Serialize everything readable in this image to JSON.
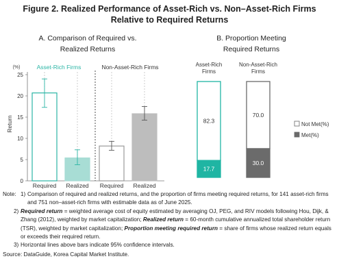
{
  "figure": {
    "title_line1": "Figure 2. Realized Performance of Asset-Rich vs. Non–Asset-Rich Firms",
    "title_line2": "Relative to Required Returns"
  },
  "chart_data": [
    {
      "type": "bar",
      "title_line1": "A. Comparison of Required vs.",
      "title_line2": "Realized Returns",
      "groups": [
        "Asset-Rich Firms",
        "Non-Asset-Rich Firms"
      ],
      "categories": [
        "Required",
        "Realized",
        "Required",
        "Realized"
      ],
      "values": [
        20.7,
        5.4,
        8.2,
        15.8
      ],
      "error_low": [
        17.3,
        3.8,
        7.2,
        14.3
      ],
      "error_high": [
        24.0,
        7.3,
        9.3,
        17.5
      ],
      "ylabel": "Return",
      "unit_label": "(%)",
      "ylim": [
        0,
        25
      ],
      "yticks": [
        "0",
        "5",
        "10",
        "15",
        "20",
        "25"
      ],
      "colors": {
        "required": "#ffffff",
        "asset_rich_outline": "#2bb5a5",
        "asset_rich_realized": "#a8ddd5",
        "non_asset_outline": "#9a9a9a",
        "non_asset_realized": "#bdbdbd",
        "group_label_asset_rich": "#2bb5a5"
      }
    },
    {
      "type": "bar",
      "stacked": true,
      "title_line1": "B. Proportion Meeting",
      "title_line2": "Required Returns",
      "categories": [
        [
          "Asset-Rich",
          "Firms"
        ],
        [
          "Non-Asset-Rich",
          "Firms"
        ]
      ],
      "series": [
        {
          "name": "Met(%)",
          "values": [
            17.7,
            30.0
          ],
          "colors": [
            "#1fb5a3",
            "#6b6b6b"
          ]
        },
        {
          "name": "Not Met(%)",
          "values": [
            82.3,
            70.0
          ],
          "colors": [
            "#ffffff",
            "#ffffff"
          ]
        }
      ],
      "value_labels": {
        "met": [
          "17.7",
          "30.0"
        ],
        "not_met": [
          "82.3",
          "70.0"
        ]
      },
      "ylim": [
        0,
        100
      ],
      "legend": "right"
    }
  ],
  "notes": {
    "prefix": "Note:",
    "n1_num": "1)",
    "n1": "Comparison of required and realized returns, and the proportion of firms meeting required returns, for 141 asset-rich firms and 751 non–asset-rich firms with estimable data as of June 2025.",
    "n2_num": "2)",
    "n2_t1": "Required return",
    "n2_r1": " = weighted average cost of equity estimated by averaging OJ, PEG, and RIV models following Hou, Dijk, & Zhang (2012), weighted by market capitalization; ",
    "n2_t2": "Realized return",
    "n2_r2": " = 60-month cumulative annualized total shareholder return (TSR), weighted by market capitalization; ",
    "n2_t3": "Proportion meeting required return",
    "n2_r3": " = share of firms whose realized return equals or exceeds their required return.",
    "n3_num": "3)",
    "n3": "Horizontal lines above bars indicate 95% confidence intervals.",
    "source": "Source: DataGuide, Korea Capital Market Institute."
  }
}
